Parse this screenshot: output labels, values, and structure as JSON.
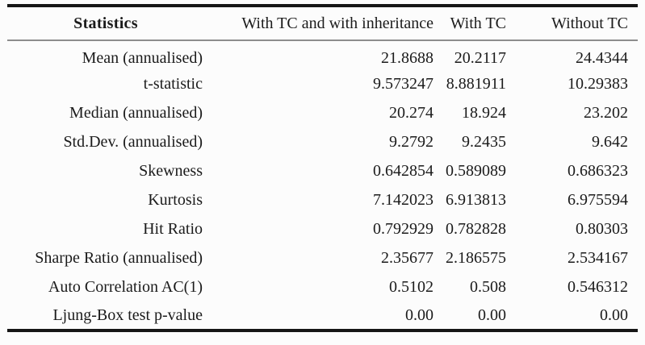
{
  "table": {
    "columns": [
      "Statistics",
      "With TC and with inheritance",
      "With TC",
      "Without TC"
    ],
    "rows": [
      {
        "label": "Mean (annualised)",
        "values": [
          "21.8688",
          "20.2117",
          "24.4344"
        ]
      },
      {
        "label": "t-statistic",
        "values": [
          "9.573247",
          "8.881911",
          "10.29383"
        ]
      },
      {
        "label": "Median (annualised)",
        "values": [
          "20.274",
          "18.924",
          "23.202"
        ]
      },
      {
        "label": "Std.Dev. (annualised)",
        "values": [
          "9.2792",
          "9.2435",
          "9.642"
        ]
      },
      {
        "label": "Skewness",
        "values": [
          "0.642854",
          "0.589089",
          "0.686323"
        ]
      },
      {
        "label": "Kurtosis",
        "values": [
          "7.142023",
          "6.913813",
          "6.975594"
        ]
      },
      {
        "label": "Hit Ratio",
        "values": [
          "0.792929",
          "0.782828",
          "0.80303"
        ]
      },
      {
        "label": "Sharpe Ratio (annualised)",
        "values": [
          "2.35677",
          "2.186575",
          "2.534167"
        ]
      },
      {
        "label": "Auto Correlation AC(1)",
        "values": [
          "0.5102",
          "0.508",
          "0.546312"
        ]
      },
      {
        "label": "Ljung-Box test p-value",
        "values": [
          "0.00",
          "0.00",
          "0.00"
        ]
      }
    ]
  }
}
